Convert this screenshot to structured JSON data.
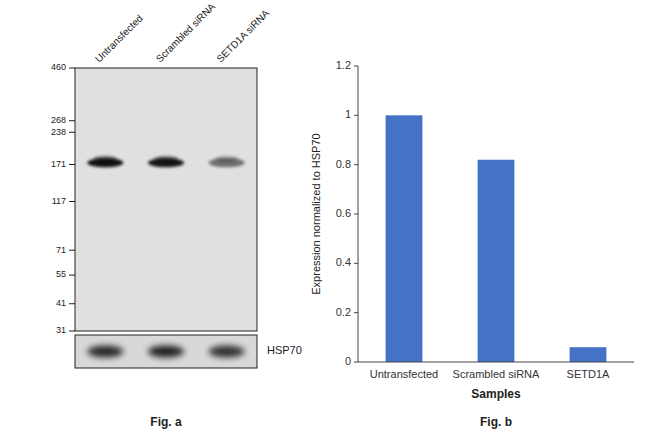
{
  "chart_data": [
    {
      "type": "blot",
      "categories": [
        "Untransfected",
        "Scrambled siRNA",
        "SETD1A siRNA"
      ],
      "values": [
        174,
        174,
        174
      ],
      "log": "y",
      "ylim": [
        31,
        460
      ],
      "yticks": [
        460,
        268,
        238,
        171,
        117,
        71,
        55,
        41,
        31
      ],
      "annotations": [
        "HSP70",
        "Fig. a"
      ]
    },
    {
      "type": "bar",
      "categories": [
        "Untransfected",
        "Scrambled siRNA",
        "SETD1A"
      ],
      "values": [
        1.0,
        0.82,
        0.06
      ],
      "color": "#4472c4",
      "ylim": [
        0,
        1.2
      ],
      "yticks": [
        0,
        0.2,
        0.4,
        0.6,
        0.8,
        1,
        1.2
      ],
      "ylabel": "Expression normalized to HSP70",
      "xlabel": "Samples",
      "annotations": [
        "Fig. b"
      ]
    }
  ]
}
